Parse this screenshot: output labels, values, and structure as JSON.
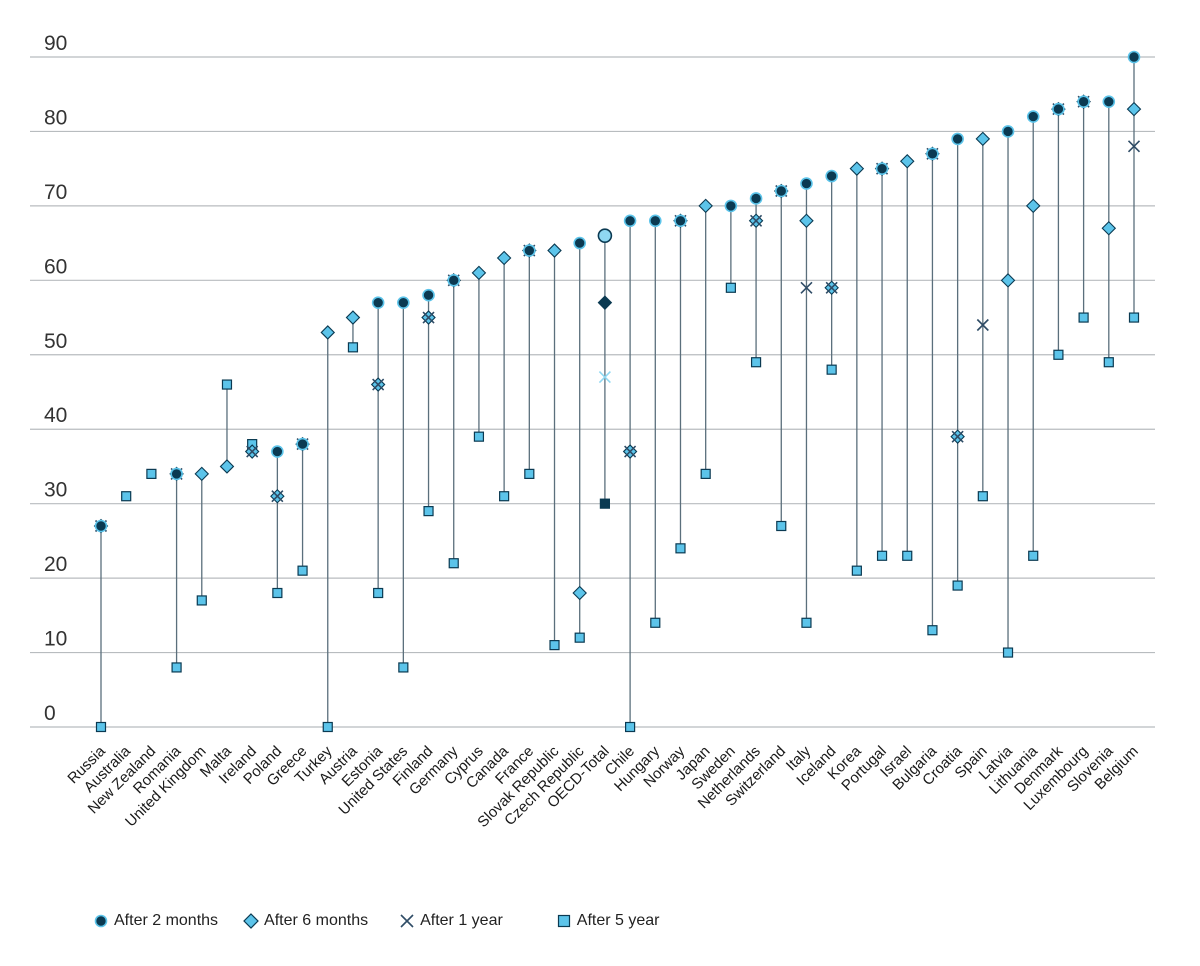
{
  "chart_data": {
    "type": "scatter",
    "title": "",
    "xlabel": "",
    "ylabel": "",
    "ylim": [
      0,
      90
    ],
    "yticks": [
      0,
      10,
      20,
      30,
      40,
      50,
      60,
      70,
      80,
      90
    ],
    "grid": "horizontal",
    "legend_position": "bottom",
    "colors": {
      "dark": "#0b3a52",
      "fill": "#5cc4ea",
      "cross": "#2f4c66",
      "oecd": "#8fd8f2",
      "stem": "#5b6f7c",
      "grid": "#b8bcbf"
    },
    "categories": [
      "Russia",
      "Australia",
      "New Zealand",
      "Romania",
      "United Kingdom",
      "Malta",
      "Ireland",
      "Poland",
      "Greece",
      "Turkey",
      "Austria",
      "Estonia",
      "United States",
      "Finland",
      "Germany",
      "Cyprus",
      "Canada",
      "France",
      "Slovak Republic",
      "Czech Republic",
      "OECD-Total",
      "Chile",
      "Hungary",
      "Norway",
      "Japan",
      "Sweden",
      "Netherlands",
      "Switzerland",
      "Italy",
      "Iceland",
      "Korea",
      "Portugal",
      "Israel",
      "Bulgaria",
      "Croatia",
      "Spain",
      "Latvia",
      "Lithuania",
      "Denmark",
      "Luxembourg",
      "Slovenia",
      "Belgium"
    ],
    "series": [
      {
        "name": "After 2 months",
        "marker": "circle",
        "values": [
          27,
          null,
          null,
          34,
          null,
          null,
          null,
          37,
          38,
          null,
          null,
          57,
          57,
          58,
          60,
          null,
          null,
          64,
          null,
          65,
          66,
          68,
          68,
          68,
          null,
          70,
          71,
          72,
          73,
          74,
          null,
          75,
          null,
          77,
          79,
          null,
          80,
          82,
          83,
          84,
          84,
          90
        ]
      },
      {
        "name": "After 6 months",
        "marker": "diamond",
        "values": [
          27,
          null,
          null,
          34,
          34,
          35,
          37,
          31,
          38,
          53,
          55,
          46,
          null,
          55,
          60,
          61,
          63,
          64,
          64,
          18,
          57,
          37,
          null,
          68,
          70,
          null,
          68,
          72,
          68,
          59,
          75,
          75,
          76,
          77,
          39,
          79,
          60,
          70,
          83,
          84,
          67,
          83
        ]
      },
      {
        "name": "After 1 year",
        "marker": "x",
        "values": [
          27,
          null,
          null,
          34,
          null,
          null,
          37,
          31,
          38,
          null,
          null,
          46,
          null,
          55,
          60,
          null,
          null,
          64,
          null,
          null,
          47,
          37,
          null,
          68,
          null,
          null,
          68,
          72,
          59,
          59,
          null,
          75,
          null,
          77,
          39,
          54,
          null,
          null,
          83,
          84,
          null,
          78
        ]
      },
      {
        "name": "After 5 year",
        "marker": "square",
        "values": [
          0,
          31,
          34,
          8,
          17,
          46,
          38,
          18,
          21,
          0,
          51,
          18,
          8,
          29,
          22,
          39,
          31,
          34,
          11,
          12,
          30,
          0,
          14,
          24,
          34,
          59,
          49,
          27,
          14,
          48,
          21,
          23,
          23,
          13,
          19,
          31,
          10,
          23,
          50,
          55,
          49,
          55
        ]
      }
    ],
    "legend": [
      "After 2 months",
      "After 6 months",
      "After 1 year",
      "After 5 year"
    ]
  }
}
